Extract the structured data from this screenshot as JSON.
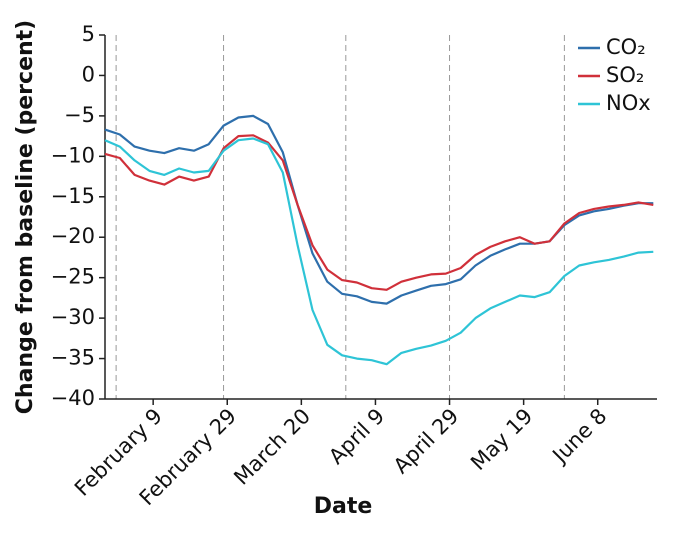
{
  "chart_data": {
    "type": "line",
    "xlabel": "Date",
    "ylabel": "Change from baseline (percent)",
    "x": [
      "January 27",
      "January 31",
      "February 4",
      "February 8",
      "February 12",
      "February 16",
      "February 20",
      "February 24",
      "February 28",
      "March 3",
      "March 7",
      "March 11",
      "March 15",
      "March 19",
      "March 23",
      "March 27",
      "March 31",
      "April 4",
      "April 8",
      "April 12",
      "April 16",
      "April 20",
      "April 24",
      "April 28",
      "May 2",
      "May 6",
      "May 10",
      "May 14",
      "May 18",
      "May 22",
      "May 26",
      "May 30",
      "June 3",
      "June 7",
      "June 11",
      "June 15",
      "June 19",
      "June 23"
    ],
    "series": [
      {
        "name": "CO₂",
        "color": "#2e6fac",
        "values": [
          -6.7,
          -7.3,
          -8.8,
          -9.3,
          -9.6,
          -9.0,
          -9.3,
          -8.5,
          -6.2,
          -5.2,
          -5.0,
          -6.0,
          -9.5,
          -16,
          -22,
          -25.5,
          -27,
          -27.3,
          -28,
          -28.2,
          -27.2,
          -26.6,
          -26.0,
          -25.8,
          -25.2,
          -23.5,
          -22.3,
          -21.5,
          -20.8,
          -20.8,
          -20.5,
          -18.5,
          -17.3,
          -16.8,
          -16.5,
          -16.1,
          -15.8,
          -15.8
        ]
      },
      {
        "name": "SO₂",
        "color": "#d0303a",
        "values": [
          -9.7,
          -10.2,
          -12.3,
          -13.0,
          -13.5,
          -12.5,
          -13.0,
          -12.5,
          -9.0,
          -7.5,
          -7.4,
          -8.3,
          -10.5,
          -16,
          -21,
          -24,
          -25.3,
          -25.6,
          -26.3,
          -26.5,
          -25.5,
          -25.0,
          -24.6,
          -24.5,
          -23.8,
          -22.2,
          -21.2,
          -20.5,
          -20.0,
          -20.8,
          -20.5,
          -18.3,
          -17,
          -16.5,
          -16.2,
          -16.0,
          -15.7,
          -16.0
        ]
      },
      {
        "name": "NOx",
        "color": "#2ec4d6",
        "values": [
          -8,
          -8.8,
          -10.5,
          -11.8,
          -12.3,
          -11.5,
          -12,
          -11.8,
          -9.3,
          -8.0,
          -7.8,
          -8.5,
          -12,
          -21,
          -29,
          -33.3,
          -34.6,
          -35,
          -35.2,
          -35.7,
          -34.3,
          -33.8,
          -33.4,
          -32.8,
          -31.8,
          -30,
          -28.8,
          -28,
          -27.2,
          -27.4,
          -26.8,
          -24.8,
          -23.5,
          -23.1,
          -22.8,
          -22.4,
          -21.9,
          -21.8
        ]
      }
    ],
    "xlim": [
      "January 27",
      "June 24"
    ],
    "xticks": [
      "February 9",
      "February 29",
      "March 20",
      "April 9",
      "April 29",
      "May 19",
      "June 8"
    ],
    "vlines": [
      "January 30",
      "February 28",
      "April 1",
      "April 29",
      "May 30"
    ],
    "ylim": [
      -40,
      5
    ],
    "yticks": [
      {
        "value": -40,
        "label": "−40"
      },
      {
        "value": -35,
        "label": "−35"
      },
      {
        "value": -30,
        "label": "−30"
      },
      {
        "value": -25,
        "label": "−25"
      },
      {
        "value": -20,
        "label": "−20"
      },
      {
        "value": -15,
        "label": "−15"
      },
      {
        "value": -10,
        "label": "−10"
      },
      {
        "value": -5,
        "label": "−5"
      },
      0,
      5
    ],
    "legend": "upper right"
  }
}
